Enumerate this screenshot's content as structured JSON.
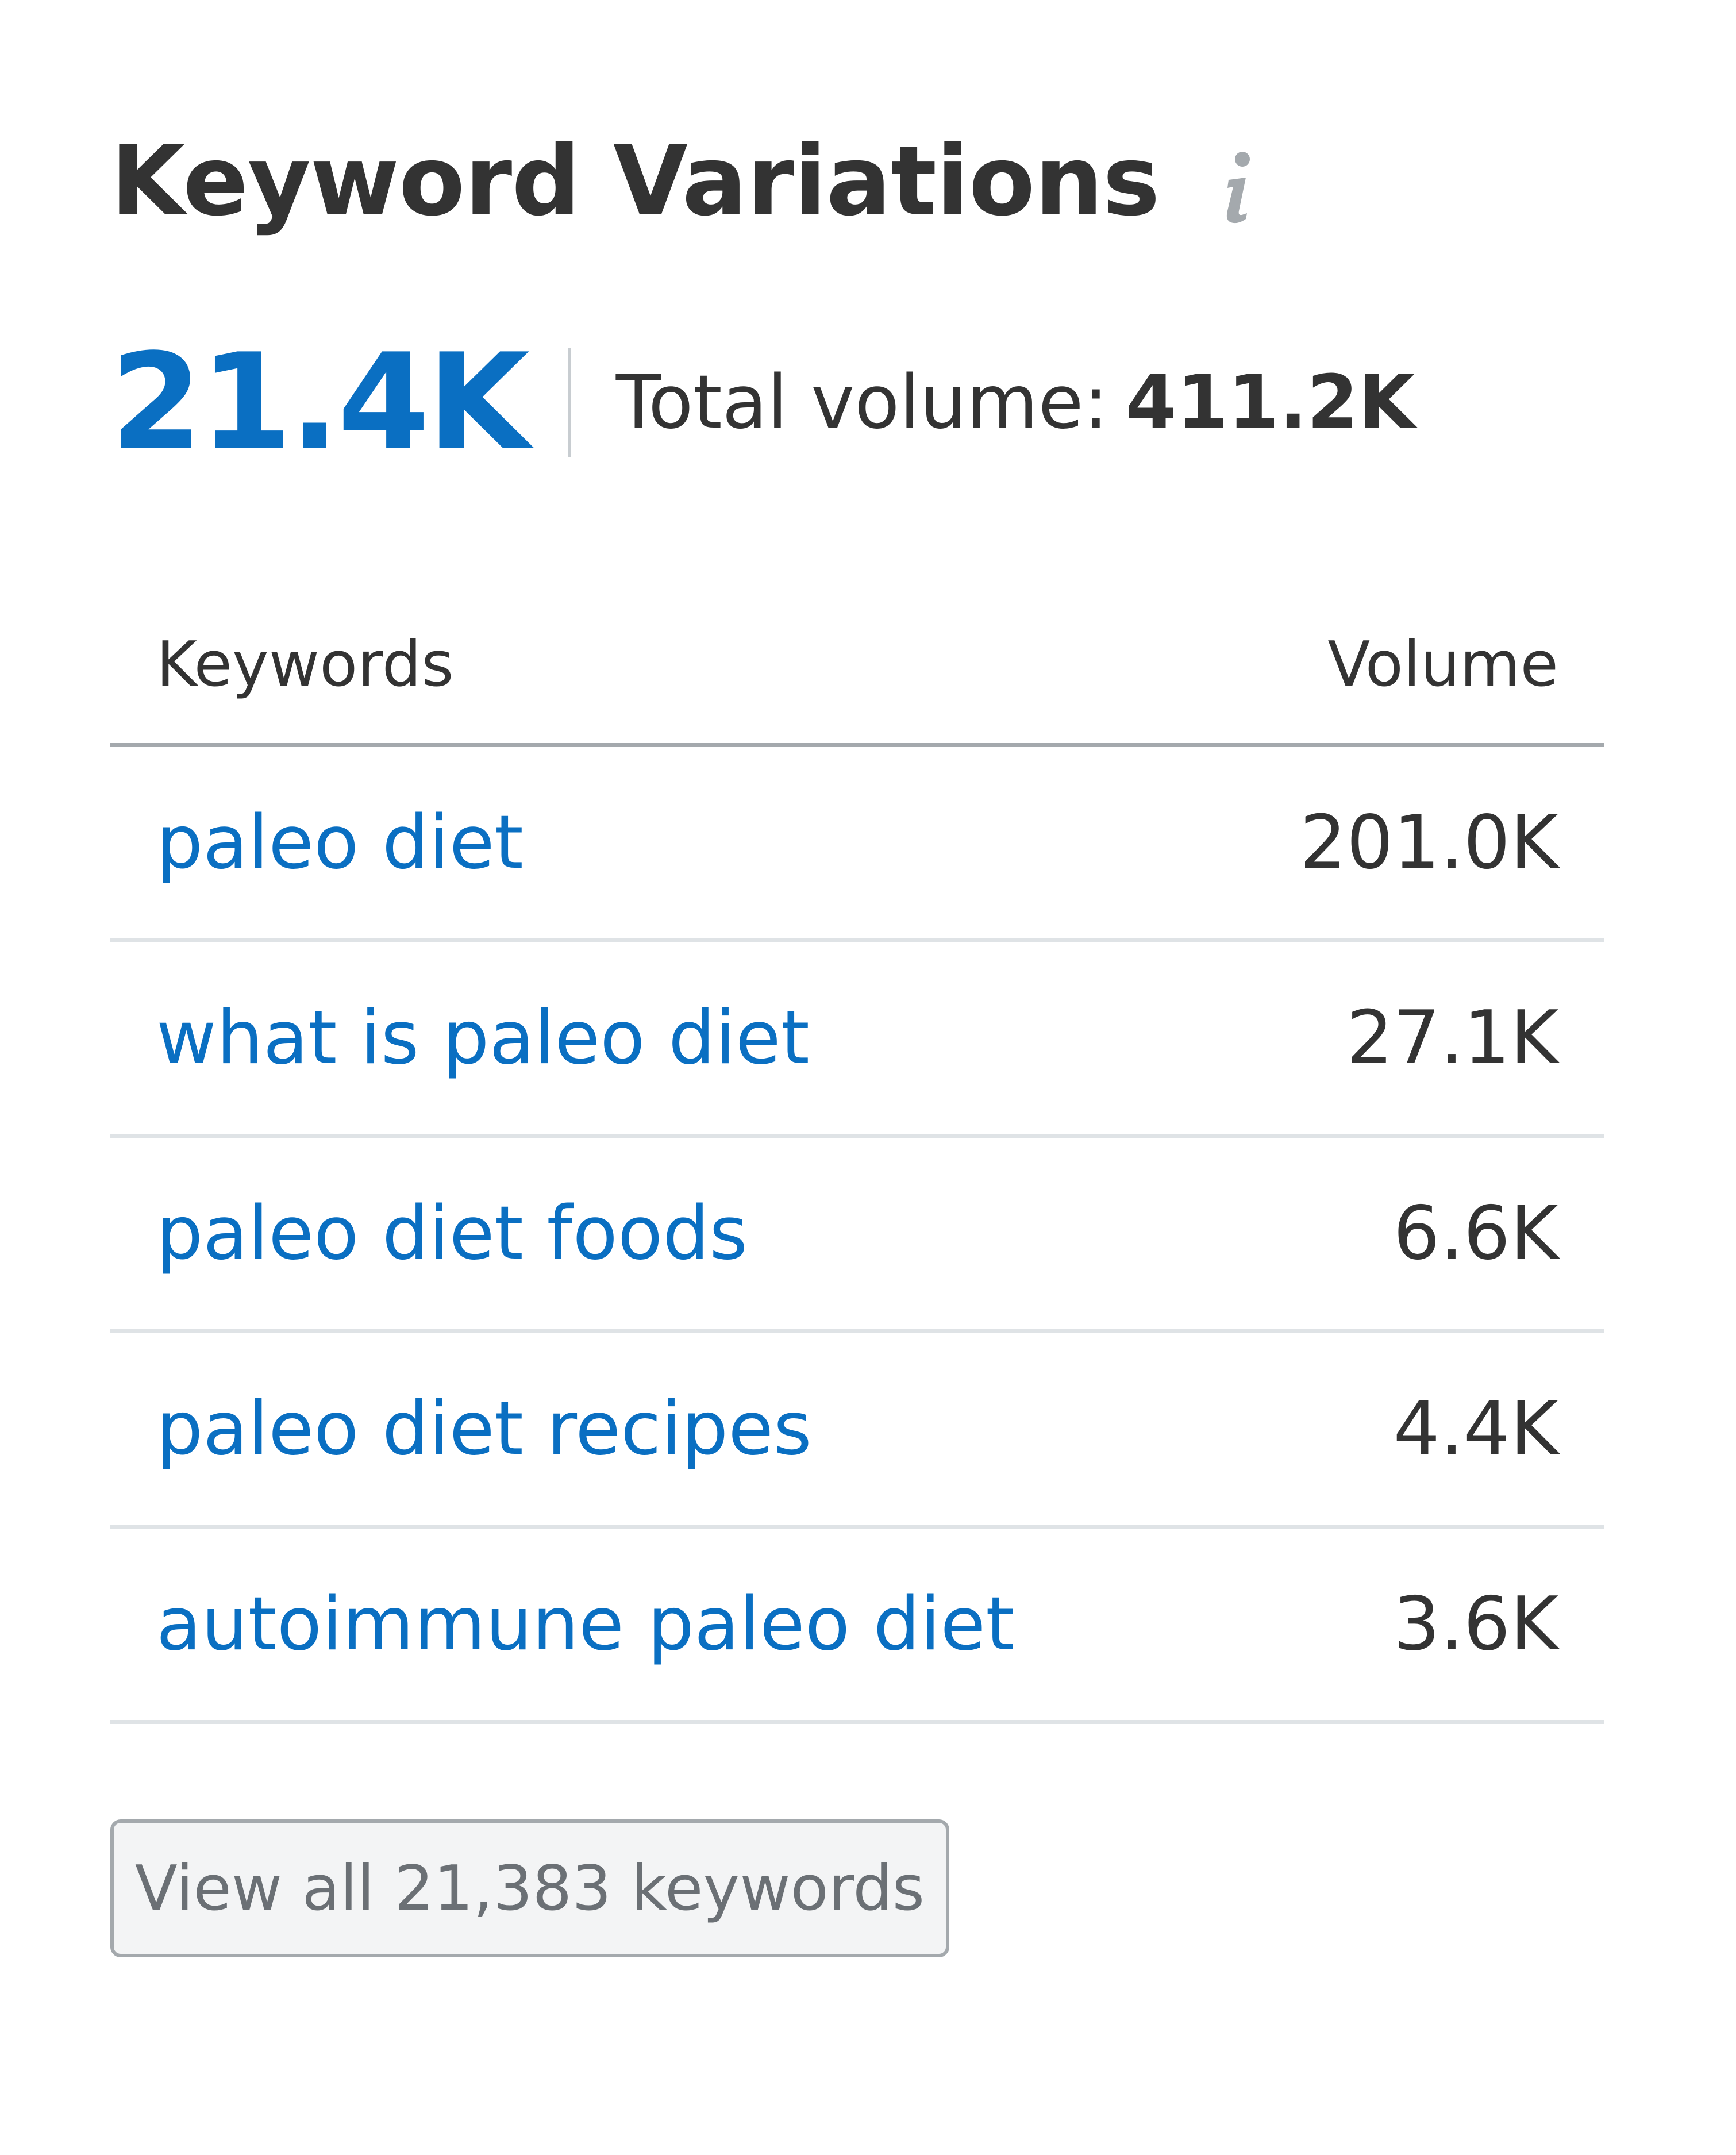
{
  "header": {
    "title": "Keyword Variations",
    "info_icon": "info-icon"
  },
  "summary": {
    "count": "21.4K",
    "total_volume_label": "Total volume:",
    "total_volume_value": "411.2K"
  },
  "table": {
    "columns": [
      "Keywords",
      "Volume"
    ],
    "rows": [
      {
        "keyword": "paleo diet",
        "volume": "201.0K"
      },
      {
        "keyword": "what is paleo diet",
        "volume": "27.1K"
      },
      {
        "keyword": "paleo diet foods",
        "volume": "6.6K"
      },
      {
        "keyword": "paleo diet recipes",
        "volume": "4.4K"
      },
      {
        "keyword": "autoimmune paleo diet",
        "volume": "3.6K"
      }
    ]
  },
  "footer": {
    "view_all_label": "View all 21,383 keywords"
  },
  "colors": {
    "accent": "#0a6fc2",
    "text": "#333333",
    "muted": "#6b7075",
    "icon": "#a4a9ad"
  }
}
